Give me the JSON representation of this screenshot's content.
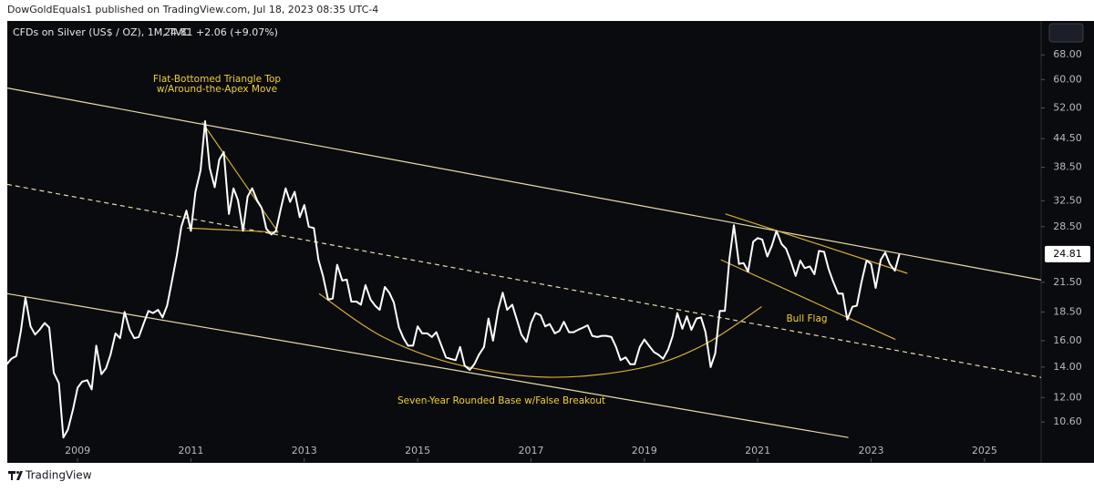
{
  "header": "DowGoldEquals1 published on TradingView.com, Jul 18, 2023 08:35 UTC-4",
  "footer": "TradingView",
  "chart_data": {
    "type": "line",
    "symbol": "CFDs on Silver (US$ / OZ), 1M, TVC",
    "last": "24.81",
    "change": "+2.06 (+9.07%)",
    "color": "#ffffff",
    "log_scale": true,
    "x": [
      2007.75,
      2007.83,
      2007.92,
      2008,
      2008.08,
      2008.17,
      2008.25,
      2008.33,
      2008.42,
      2008.5,
      2008.58,
      2008.67,
      2008.75,
      2008.83,
      2008.92,
      2009,
      2009.08,
      2009.17,
      2009.25,
      2009.33,
      2009.42,
      2009.5,
      2009.58,
      2009.67,
      2009.75,
      2009.83,
      2009.92,
      2010,
      2010.08,
      2010.17,
      2010.25,
      2010.33,
      2010.42,
      2010.5,
      2010.58,
      2010.67,
      2010.75,
      2010.83,
      2010.92,
      2011,
      2011.08,
      2011.17,
      2011.25,
      2011.33,
      2011.42,
      2011.5,
      2011.58,
      2011.67,
      2011.75,
      2011.83,
      2011.92,
      2012,
      2012.08,
      2012.17,
      2012.25,
      2012.33,
      2012.42,
      2012.5,
      2012.58,
      2012.67,
      2012.75,
      2012.83,
      2012.92,
      2013,
      2013.08,
      2013.17,
      2013.25,
      2013.33,
      2013.42,
      2013.5,
      2013.58,
      2013.67,
      2013.75,
      2013.83,
      2013.92,
      2014,
      2014.08,
      2014.17,
      2014.25,
      2014.33,
      2014.42,
      2014.5,
      2014.58,
      2014.67,
      2014.75,
      2014.83,
      2014.92,
      2015,
      2015.08,
      2015.17,
      2015.25,
      2015.33,
      2015.42,
      2015.5,
      2015.58,
      2015.67,
      2015.75,
      2015.83,
      2015.92,
      2016,
      2016.08,
      2016.17,
      2016.25,
      2016.33,
      2016.42,
      2016.5,
      2016.58,
      2016.67,
      2016.75,
      2016.83,
      2016.92,
      2017,
      2017.08,
      2017.17,
      2017.25,
      2017.33,
      2017.42,
      2017.5,
      2017.58,
      2017.67,
      2017.75,
      2017.83,
      2017.92,
      2018,
      2018.08,
      2018.17,
      2018.25,
      2018.33,
      2018.42,
      2018.5,
      2018.58,
      2018.67,
      2018.75,
      2018.83,
      2018.92,
      2019,
      2019.08,
      2019.17,
      2019.25,
      2019.33,
      2019.42,
      2019.5,
      2019.58,
      2019.67,
      2019.75,
      2019.83,
      2019.92,
      2020,
      2020.08,
      2020.17,
      2020.25,
      2020.33,
      2020.42,
      2020.5,
      2020.58,
      2020.67,
      2020.75,
      2020.83,
      2020.92,
      2021,
      2021.08,
      2021.17,
      2021.25,
      2021.33,
      2021.42,
      2021.5,
      2021.58,
      2021.67,
      2021.75,
      2021.83,
      2021.92,
      2022,
      2022.08,
      2022.17,
      2022.25,
      2022.33,
      2022.42,
      2022.5,
      2022.58,
      2022.67,
      2022.75,
      2022.83,
      2022.92,
      2023,
      2023.08,
      2023.17,
      2023.25,
      2023.33,
      2023.42,
      2023.5
    ],
    "values": [
      14.2,
      14.6,
      14.8,
      16.8,
      19.9,
      17.2,
      16.5,
      16.9,
      17.5,
      17.1,
      13.6,
      12.9,
      9.8,
      10.2,
      11.3,
      12.6,
      13.0,
      13.1,
      12.5,
      15.6,
      13.5,
      13.9,
      14.9,
      16.6,
      16.2,
      18.5,
      16.9,
      16.2,
      16.3,
      17.5,
      18.6,
      18.4,
      18.7,
      18.0,
      19.1,
      21.8,
      24.6,
      28.5,
      30.9,
      27.9,
      34.0,
      37.9,
      48.6,
      38.4,
      34.8,
      40.0,
      41.6,
      30.4,
      34.6,
      32.6,
      27.9,
      33.2,
      34.6,
      32.5,
      31.3,
      28.2,
      27.4,
      27.9,
      31.0,
      34.6,
      32.3,
      34.0,
      29.9,
      31.8,
      28.5,
      28.3,
      24.1,
      22.2,
      19.7,
      19.8,
      23.5,
      21.7,
      21.8,
      19.5,
      19.5,
      19.2,
      21.2,
      19.7,
      19.1,
      18.7,
      21.0,
      20.4,
      19.4,
      17.1,
      16.2,
      15.6,
      15.6,
      17.2,
      16.6,
      16.6,
      16.3,
      16.7,
      15.6,
      14.7,
      14.6,
      14.5,
      15.5,
      14.1,
      13.8,
      14.2,
      14.9,
      15.5,
      17.9,
      16.0,
      18.7,
      20.4,
      18.7,
      19.2,
      17.8,
      16.5,
      15.9,
      17.5,
      18.4,
      18.2,
      17.2,
      17.4,
      16.6,
      16.8,
      17.6,
      16.7,
      16.7,
      16.9,
      17.1,
      17.3,
      16.4,
      16.3,
      16.4,
      16.4,
      16.3,
      15.5,
      14.5,
      14.7,
      14.2,
      14.2,
      15.5,
      16.1,
      15.6,
      15.1,
      14.9,
      14.6,
      15.3,
      16.4,
      18.4,
      17.0,
      18.1,
      16.9,
      17.9,
      18.0,
      16.7,
      14.0,
      15.0,
      18.6,
      18.6,
      24.2,
      28.7,
      23.6,
      23.7,
      22.7,
      26.4,
      26.9,
      26.7,
      24.5,
      25.9,
      27.9,
      26.1,
      25.5,
      24.0,
      22.2,
      24.0,
      23.1,
      23.3,
      22.4,
      25.2,
      25.1,
      23.0,
      21.6,
      20.3,
      20.3,
      17.8,
      19.0,
      19.1,
      21.5,
      24.0,
      23.6,
      20.9,
      24.1,
      25.0,
      23.6,
      22.8,
      24.81
    ],
    "last_value": {
      "value": 24.81,
      "label": "24.81"
    },
    "xlim": [
      2007.76,
      2026.0
    ],
    "ylim": [
      8.74,
      80
    ],
    "xticks": [
      2009,
      2011,
      2013,
      2015,
      2017,
      2019,
      2021,
      2023,
      2025
    ],
    "yticks": [
      {
        "value": 10.6,
        "label": "10.60"
      },
      {
        "value": 12,
        "label": "12.00"
      },
      {
        "value": 14,
        "label": "14.00"
      },
      {
        "value": 16,
        "label": "16.00"
      },
      {
        "value": 18.5,
        "label": "18.50"
      },
      {
        "value": 21.5,
        "label": "21.50"
      },
      {
        "value": 28.5,
        "label": "28.50"
      },
      {
        "value": 32.5,
        "label": "32.50"
      },
      {
        "value": 38.5,
        "label": "38.50"
      },
      {
        "value": 44.5,
        "label": "44.50"
      },
      {
        "value": 52,
        "label": "52.00"
      },
      {
        "value": 60,
        "label": "60.00"
      },
      {
        "value": 68,
        "label": "68.00"
      }
    ],
    "trendlines": [
      {
        "x": [
          2007.76,
          2026.05
        ],
        "y": [
          57.5,
          21.7
        ],
        "color": "#e8dcaa"
      },
      {
        "x": [
          2007.76,
          2026.05
        ],
        "y": [
          35.3,
          13.25
        ],
        "color": "#e8dcaa",
        "dashed": true
      },
      {
        "x": [
          2007.76,
          2022.6
        ],
        "y": [
          20.3,
          9.8
        ],
        "color": "#e8dcaa"
      },
      {
        "x": [
          2011.2,
          2012.54
        ],
        "y": [
          48.3,
          27.7
        ],
        "color": "#d6ad3a"
      },
      {
        "x": [
          2010.93,
          2012.54
        ],
        "y": [
          28.3,
          27.7
        ],
        "color": "#d6ad3a"
      },
      {
        "x": [
          2020.43,
          2023.64
        ],
        "y": [
          30.4,
          22.5
        ],
        "color": "#d6ad3a"
      },
      {
        "x": [
          2020.35,
          2023.43
        ],
        "y": [
          24.1,
          16.1
        ],
        "color": "#d6ad3a"
      },
      {
        "x": [
          2013.26,
          2014.39,
          2015.68,
          2017.29,
          2018.9,
          2020.02,
          2021.07
        ],
        "y": [
          20.3,
          16.3,
          14.2,
          13.3,
          13.9,
          15.6,
          19.0
        ],
        "color": "#d6ad3a"
      }
    ],
    "annotations": [
      "Flat-Bottomed Triangle Top",
      "w/Around-the-Apex Move",
      "Seven-Year Rounded Base w/False Breakout",
      "Bull Flag"
    ],
    "annotation_color": "#f2cf3c"
  }
}
